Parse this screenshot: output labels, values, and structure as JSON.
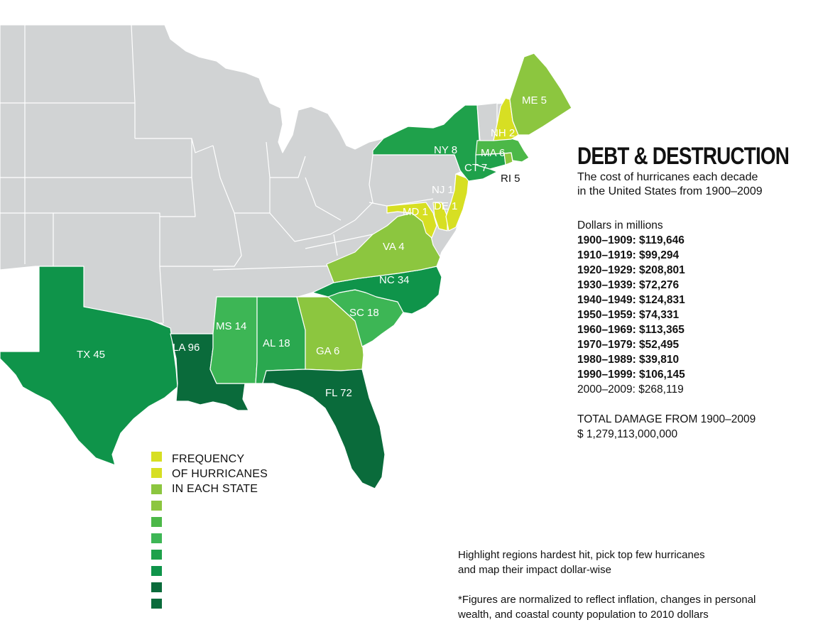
{
  "map": {
    "states": [
      {
        "code": "TX",
        "count": "45",
        "label": "TX 45",
        "color": "#0f944a"
      },
      {
        "code": "LA",
        "count": "96",
        "label": "LA 96",
        "color": "#0a6b3b"
      },
      {
        "code": "MS",
        "count": "14",
        "label": "MS 14",
        "color": "#3db655"
      },
      {
        "code": "AL",
        "count": "18",
        "label": "AL 18",
        "color": "#2aa84f"
      },
      {
        "code": "GA",
        "count": "6",
        "label": "GA 6",
        "color": "#8cc63f"
      },
      {
        "code": "FL",
        "count": "72",
        "label": "FL 72",
        "color": "#0a6b3b"
      },
      {
        "code": "SC",
        "count": "18",
        "label": "SC 18",
        "color": "#3db655"
      },
      {
        "code": "NC",
        "count": "34",
        "label": "NC 34",
        "color": "#0f944a"
      },
      {
        "code": "VA",
        "count": "4",
        "label": "VA 4",
        "color": "#8cc63f"
      },
      {
        "code": "MD",
        "count": "1",
        "label": "MD 1",
        "color": "#d7df23"
      },
      {
        "code": "DE",
        "count": "1",
        "label": "DE 1",
        "color": "#d7df23"
      },
      {
        "code": "NJ",
        "count": "1",
        "label": "NJ 1",
        "color": "#d7df23"
      },
      {
        "code": "NY",
        "count": "8",
        "label": "NY 8",
        "color": "#1fa14b"
      },
      {
        "code": "CT",
        "count": "7",
        "label": "CT 7",
        "color": "#1fa14b"
      },
      {
        "code": "RI",
        "count": "5",
        "label": "RI 5",
        "color": "#8cc63f"
      },
      {
        "code": "MA",
        "count": "6",
        "label": "MA 6",
        "color": "#4cb848"
      },
      {
        "code": "NH",
        "count": "2",
        "label": "NH 2",
        "color": "#d7df23"
      },
      {
        "code": "ME",
        "count": "5",
        "label": "ME 5",
        "color": "#8cc63f"
      }
    ],
    "land_color": "#d1d3d4",
    "border_color": "#ffffff"
  },
  "legend": {
    "title_lines": [
      "FREQUENCY",
      "OF HURRICANES",
      "IN EACH STATE"
    ],
    "colors": [
      "#d7df23",
      "#d7df23",
      "#8cc63f",
      "#8cc63f",
      "#4cb848",
      "#3db655",
      "#1fa14b",
      "#0f944a",
      "#0a6b3b",
      "#0a6b3b"
    ]
  },
  "panel": {
    "title": "DEBT & DESTRUCTION",
    "subtitle_line1": "The cost of hurricanes each decade",
    "subtitle_line2": "in the United States from 1900–2009",
    "units": "Dollars in millions",
    "decades": [
      {
        "text": "1900–1909: $119,646",
        "bold": true
      },
      {
        "text": "1910–1919: $99,294",
        "bold": true
      },
      {
        "text": "1920–1929: $208,801",
        "bold": true
      },
      {
        "text": "1930–1939: $72,276",
        "bold": true
      },
      {
        "text": "1940–1949: $124,831",
        "bold": true
      },
      {
        "text": "1950–1959: $74,331",
        "bold": true
      },
      {
        "text": "1960–1969: $113,365",
        "bold": true
      },
      {
        "text": "1970–1979: $52,495",
        "bold": true
      },
      {
        "text": "1980–1989: $39,810",
        "bold": true
      },
      {
        "text": "1990–1999: $106,145",
        "bold": true
      },
      {
        "text": "2000–2009: $268,119",
        "bold": false
      }
    ],
    "total_label": "TOTAL DAMAGE FROM 1900–2009",
    "total_value": "$ 1,279,113,000,000"
  },
  "notes": {
    "line1": "Highlight regions hardest hit, pick top few hurricanes",
    "line2": "and map their impact dollar-wise",
    "line3": "*Figures are normalized to reflect inflation, changes in personal",
    "line4": "wealth, and coastal county population to 2010 dollars"
  }
}
